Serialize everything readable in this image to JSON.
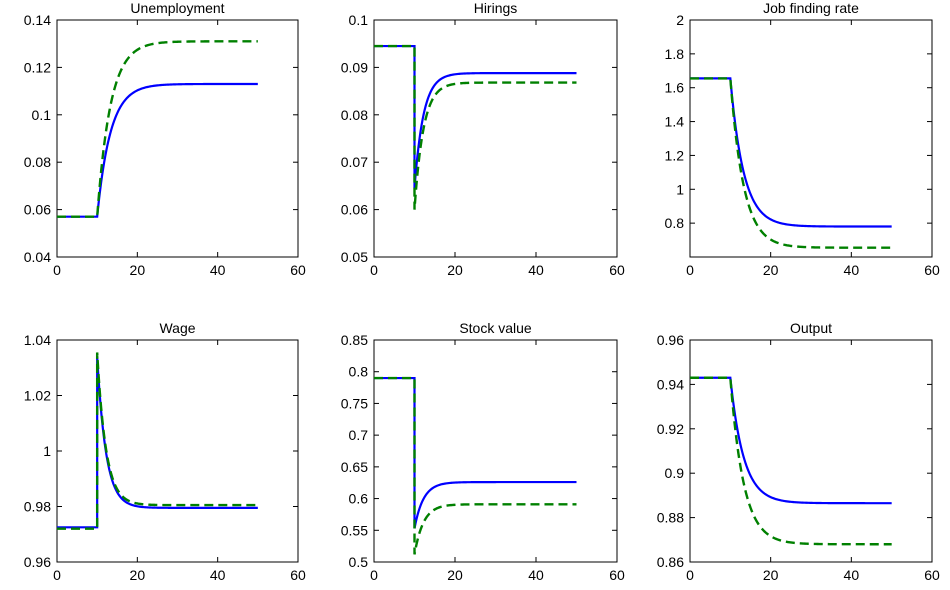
{
  "chart_data": [
    {
      "type": "line",
      "title": "Unemployment",
      "xlim": [
        0,
        60
      ],
      "ylim": [
        0.04,
        0.14
      ],
      "xticks": [
        "0",
        "20",
        "40",
        "60"
      ],
      "yticks": [
        "0.04",
        "0.06",
        "0.08",
        "0.1",
        "0.12",
        "0.14"
      ],
      "shock_at": 10,
      "x_end": 50,
      "series": [
        {
          "color": "#0000ff",
          "style": "solid",
          "before": 0.057,
          "after": 0.113,
          "peak": null
        },
        {
          "color": "#008000",
          "style": "dashed",
          "before": 0.057,
          "after": 0.131,
          "peak": null
        }
      ]
    },
    {
      "type": "line",
      "title": "Hirings",
      "xlim": [
        0,
        60
      ],
      "ylim": [
        0.05,
        0.1
      ],
      "xticks": [
        "0",
        "20",
        "40",
        "60"
      ],
      "yticks": [
        "0.05",
        "0.06",
        "0.07",
        "0.08",
        "0.09",
        "0.1"
      ],
      "shock_at": 10,
      "x_end": 50,
      "series": [
        {
          "color": "#0000ff",
          "style": "solid",
          "before": 0.0945,
          "after": 0.0888,
          "peak": 0.0645
        },
        {
          "color": "#008000",
          "style": "dashed",
          "before": 0.0945,
          "after": 0.0868,
          "peak": 0.06
        }
      ]
    },
    {
      "type": "line",
      "title": "Job finding rate",
      "xlim": [
        0,
        60
      ],
      "ylim": [
        0.6,
        2
      ],
      "xticks": [
        "0",
        "20",
        "40",
        "60"
      ],
      "yticks": [
        "0.8",
        "1",
        "1.2",
        "1.4",
        "1.6",
        "1.8",
        "2"
      ],
      "shock_at": 10,
      "x_end": 50,
      "series": [
        {
          "color": "#0000ff",
          "style": "solid",
          "before": 1.655,
          "after": 0.78,
          "peak": null
        },
        {
          "color": "#008000",
          "style": "dashed",
          "before": 1.655,
          "after": 0.655,
          "peak": null
        }
      ]
    },
    {
      "type": "line",
      "title": "Wage",
      "xlim": [
        0,
        60
      ],
      "ylim": [
        0.96,
        1.04
      ],
      "xticks": [
        "0",
        "20",
        "40",
        "60"
      ],
      "yticks": [
        "0.96",
        "0.98",
        "1",
        "1.02",
        "1.04"
      ],
      "shock_at": 10,
      "x_end": 50,
      "series": [
        {
          "color": "#0000ff",
          "style": "solid",
          "before": 0.9725,
          "after": 0.9795,
          "peak": 1.034
        },
        {
          "color": "#008000",
          "style": "dashed",
          "before": 0.972,
          "after": 0.9805,
          "peak": 1.0355
        }
      ]
    },
    {
      "type": "line",
      "title": "Stock value",
      "xlim": [
        0,
        60
      ],
      "ylim": [
        0.5,
        0.85
      ],
      "xticks": [
        "0",
        "20",
        "40",
        "60"
      ],
      "yticks": [
        "0.5",
        "0.55",
        "0.6",
        "0.65",
        "0.7",
        "0.75",
        "0.8",
        "0.85"
      ],
      "shock_at": 10,
      "x_end": 50,
      "series": [
        {
          "color": "#0000ff",
          "style": "solid",
          "before": 0.79,
          "after": 0.626,
          "peak": 0.553
        },
        {
          "color": "#008000",
          "style": "dashed",
          "before": 0.79,
          "after": 0.591,
          "peak": 0.512
        }
      ]
    },
    {
      "type": "line",
      "title": "Output",
      "xlim": [
        0,
        60
      ],
      "ylim": [
        0.86,
        0.96
      ],
      "xticks": [
        "0",
        "20",
        "40",
        "60"
      ],
      "yticks": [
        "0.86",
        "0.88",
        "0.9",
        "0.92",
        "0.94",
        "0.96"
      ],
      "shock_at": 10,
      "x_end": 50,
      "series": [
        {
          "color": "#0000ff",
          "style": "solid",
          "before": 0.943,
          "after": 0.8865,
          "peak": null
        },
        {
          "color": "#008000",
          "style": "dashed",
          "before": 0.943,
          "after": 0.868,
          "peak": null
        }
      ]
    }
  ]
}
